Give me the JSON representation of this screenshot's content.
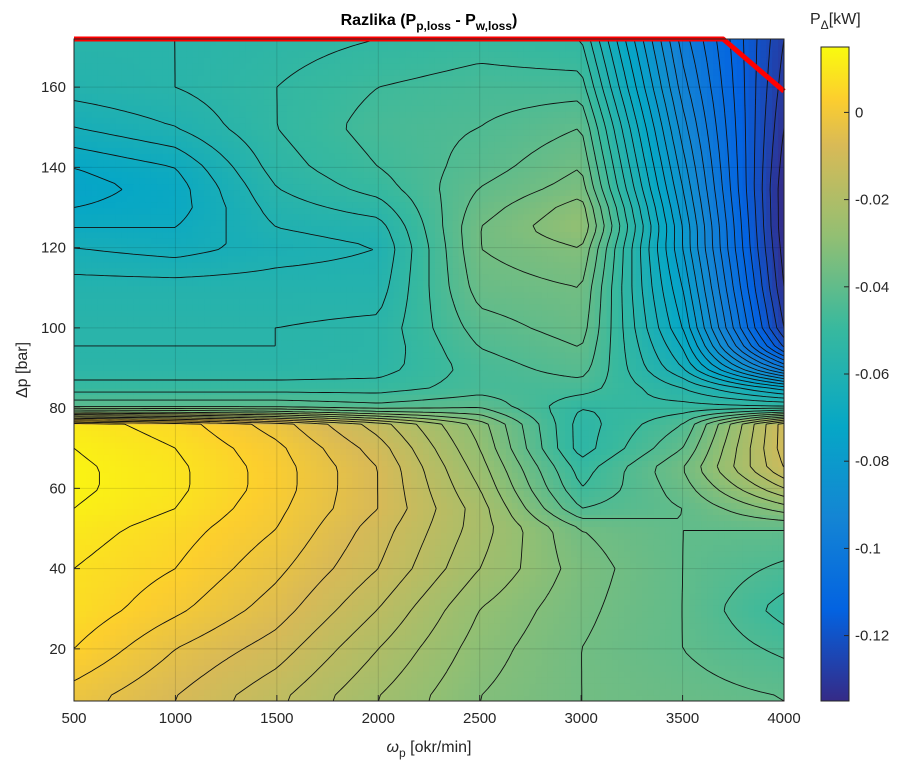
{
  "chart_data": {
    "type": "heatmap",
    "subtype": "filled-contour",
    "title": "Razlika (P",
    "title_sub1": "p,loss",
    "title_mid": " - P",
    "title_sub2": "w,loss",
    "title_end": ")",
    "xlabel_symbol": "ω",
    "xlabel_sub": "p",
    "xlabel_unit": " [okr/min]",
    "ylabel": "Δp  [bar]",
    "colorbar_label": "P",
    "colorbar_label_sub": "Δ",
    "colorbar_label_unit": "[kW]",
    "xlim": [
      500,
      4000
    ],
    "ylim": [
      7,
      172
    ],
    "clim": [
      -0.135,
      0.015
    ],
    "colormap": "parula",
    "grid": true,
    "x_ticks": [
      "500",
      "1000",
      "1500",
      "2000",
      "2500",
      "3000",
      "3500",
      "4000"
    ],
    "y_ticks": [
      "20",
      "40",
      "60",
      "80",
      "100",
      "120",
      "140",
      "160"
    ],
    "colorbar_ticks": [
      "0",
      "-0.02",
      "-0.04",
      "-0.06",
      "-0.08",
      "-0.1",
      "-0.12"
    ],
    "x": [
      500,
      1000,
      1500,
      2000,
      2500,
      3000,
      3500,
      4000
    ],
    "y": [
      8,
      20,
      30,
      40,
      50,
      55,
      60,
      65,
      70,
      76,
      80,
      85,
      90,
      95,
      100,
      110,
      120,
      125,
      130,
      135,
      140,
      150,
      160,
      172
    ],
    "z": [
      [
        -0.002,
        -0.008,
        -0.015,
        -0.024,
        -0.032,
        -0.036,
        -0.038,
        -0.04
      ],
      [
        0.004,
        -0.004,
        -0.01,
        -0.02,
        -0.03,
        -0.036,
        -0.04,
        -0.045
      ],
      [
        0.007,
        0.001,
        -0.006,
        -0.016,
        -0.028,
        -0.035,
        -0.04,
        -0.05
      ],
      [
        0.008,
        0.004,
        -0.003,
        -0.012,
        -0.024,
        -0.034,
        -0.04,
        -0.045
      ],
      [
        0.01,
        0.006,
        0.0,
        -0.01,
        -0.022,
        -0.036,
        -0.04,
        -0.04
      ],
      [
        0.012,
        0.008,
        0.001,
        -0.008,
        -0.022,
        -0.044,
        -0.04,
        -0.03
      ],
      [
        0.013,
        0.009,
        0.002,
        -0.008,
        -0.024,
        -0.048,
        -0.038,
        -0.02
      ],
      [
        0.013,
        0.009,
        0.002,
        -0.008,
        -0.026,
        -0.05,
        -0.036,
        -0.012
      ],
      [
        0.012,
        0.008,
        0.001,
        -0.01,
        -0.028,
        -0.054,
        -0.04,
        -0.01
      ],
      [
        0.01,
        0.006,
        -0.002,
        -0.014,
        -0.03,
        -0.054,
        -0.044,
        -0.01
      ],
      [
        -0.04,
        -0.04,
        -0.04,
        -0.042,
        -0.04,
        -0.052,
        -0.05,
        -0.05
      ],
      [
        -0.05,
        -0.05,
        -0.05,
        -0.05,
        -0.046,
        -0.046,
        -0.056,
        -0.07
      ],
      [
        -0.055,
        -0.055,
        -0.055,
        -0.054,
        -0.046,
        -0.042,
        -0.064,
        -0.1
      ],
      [
        -0.056,
        -0.056,
        -0.056,
        -0.055,
        -0.044,
        -0.04,
        -0.068,
        -0.12
      ],
      [
        -0.056,
        -0.056,
        -0.056,
        -0.055,
        -0.042,
        -0.038,
        -0.072,
        -0.128
      ],
      [
        -0.058,
        -0.058,
        -0.058,
        -0.058,
        -0.038,
        -0.036,
        -0.076,
        -0.132
      ],
      [
        -0.064,
        -0.066,
        -0.062,
        -0.06,
        -0.036,
        -0.032,
        -0.08,
        -0.134
      ],
      [
        -0.068,
        -0.068,
        -0.06,
        -0.058,
        -0.036,
        -0.028,
        -0.08,
        -0.135
      ],
      [
        -0.072,
        -0.07,
        -0.058,
        -0.054,
        -0.038,
        -0.03,
        -0.082,
        -0.135
      ],
      [
        -0.074,
        -0.07,
        -0.056,
        -0.05,
        -0.04,
        -0.034,
        -0.084,
        -0.135
      ],
      [
        -0.072,
        -0.068,
        -0.054,
        -0.048,
        -0.042,
        -0.036,
        -0.086,
        -0.134
      ],
      [
        -0.064,
        -0.06,
        -0.052,
        -0.046,
        -0.044,
        -0.04,
        -0.09,
        -0.132
      ],
      [
        -0.058,
        -0.056,
        -0.052,
        -0.048,
        -0.046,
        -0.046,
        -0.094,
        -0.13
      ],
      [
        -0.056,
        -0.056,
        -0.054,
        -0.052,
        -0.05,
        -0.052,
        -0.098,
        -0.128
      ]
    ],
    "limit_line": {
      "color": "#ff0000",
      "x": [
        500,
        3700,
        4000
      ],
      "y": [
        172,
        172,
        159
      ]
    }
  }
}
